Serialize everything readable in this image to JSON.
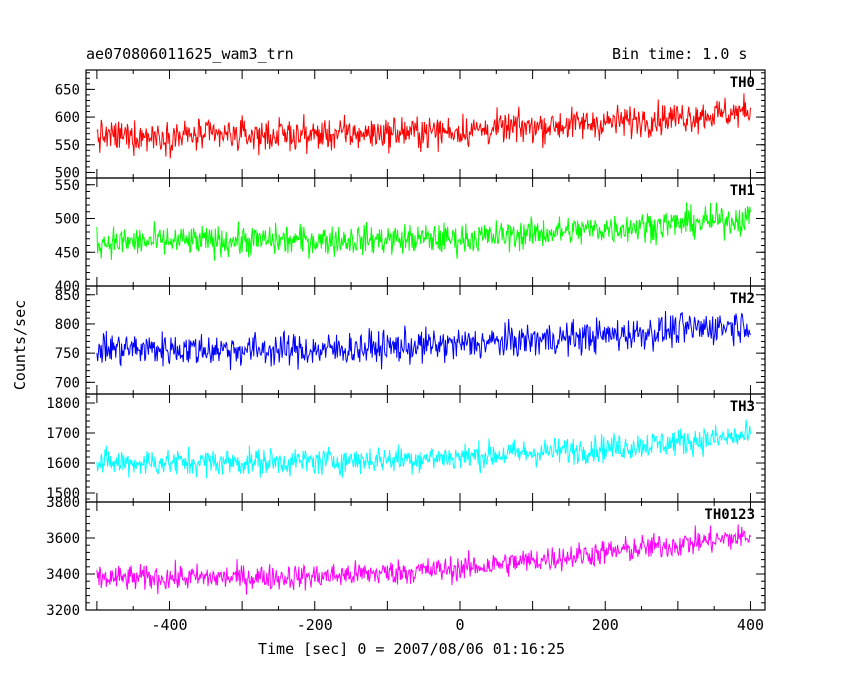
{
  "chart_data": {
    "type": "line",
    "title": "ae070806011625_wam3_trn",
    "subtitle": "Bin time: 1.0 s",
    "xlabel": "Time [sec] 0 = 2007/08/06 01:16:25",
    "ylabel": "Counts/sec",
    "xlim": [
      -515,
      420
    ],
    "xticks": [
      -400,
      -200,
      0,
      200,
      400
    ],
    "x_sampling": {
      "start": -500,
      "end": 400,
      "bin": 1.0
    },
    "panels": [
      {
        "name": "TH0",
        "color": "#ff0000",
        "ylim": [
          490,
          685
        ],
        "yticks": [
          500,
          550,
          600,
          650
        ],
        "trend": {
          "x": [
            -500,
            -200,
            0,
            200,
            400
          ],
          "y": [
            565,
            568,
            575,
            590,
            610
          ]
        },
        "scatter": 28
      },
      {
        "name": "TH1",
        "color": "#00ff00",
        "ylim": [
          400,
          560
        ],
        "yticks": [
          400,
          450,
          500,
          550
        ],
        "trend": {
          "x": [
            -500,
            -200,
            0,
            200,
            400
          ],
          "y": [
            465,
            468,
            470,
            485,
            500
          ]
        },
        "scatter": 22
      },
      {
        "name": "TH2",
        "color": "#0000ff",
        "ylim": [
          680,
          865
        ],
        "yticks": [
          700,
          750,
          800,
          850
        ],
        "trend": {
          "x": [
            -500,
            -200,
            0,
            200,
            400
          ],
          "y": [
            758,
            755,
            765,
            780,
            800
          ]
        },
        "scatter": 28
      },
      {
        "name": "TH3",
        "color": "#00ffff",
        "ylim": [
          1470,
          1830
        ],
        "yticks": [
          1500,
          1600,
          1700,
          1800
        ],
        "trend": {
          "x": [
            -500,
            -200,
            0,
            200,
            400
          ],
          "y": [
            1600,
            1605,
            1620,
            1650,
            1690
          ]
        },
        "scatter": 45
      },
      {
        "name": "TH0123",
        "color": "#ff00ff",
        "ylim": [
          3200,
          3800
        ],
        "yticks": [
          3200,
          3400,
          3600,
          3800
        ],
        "trend": {
          "x": [
            -500,
            -200,
            0,
            200,
            400
          ],
          "y": [
            3375,
            3385,
            3430,
            3520,
            3610
          ]
        },
        "scatter": 70
      }
    ]
  }
}
